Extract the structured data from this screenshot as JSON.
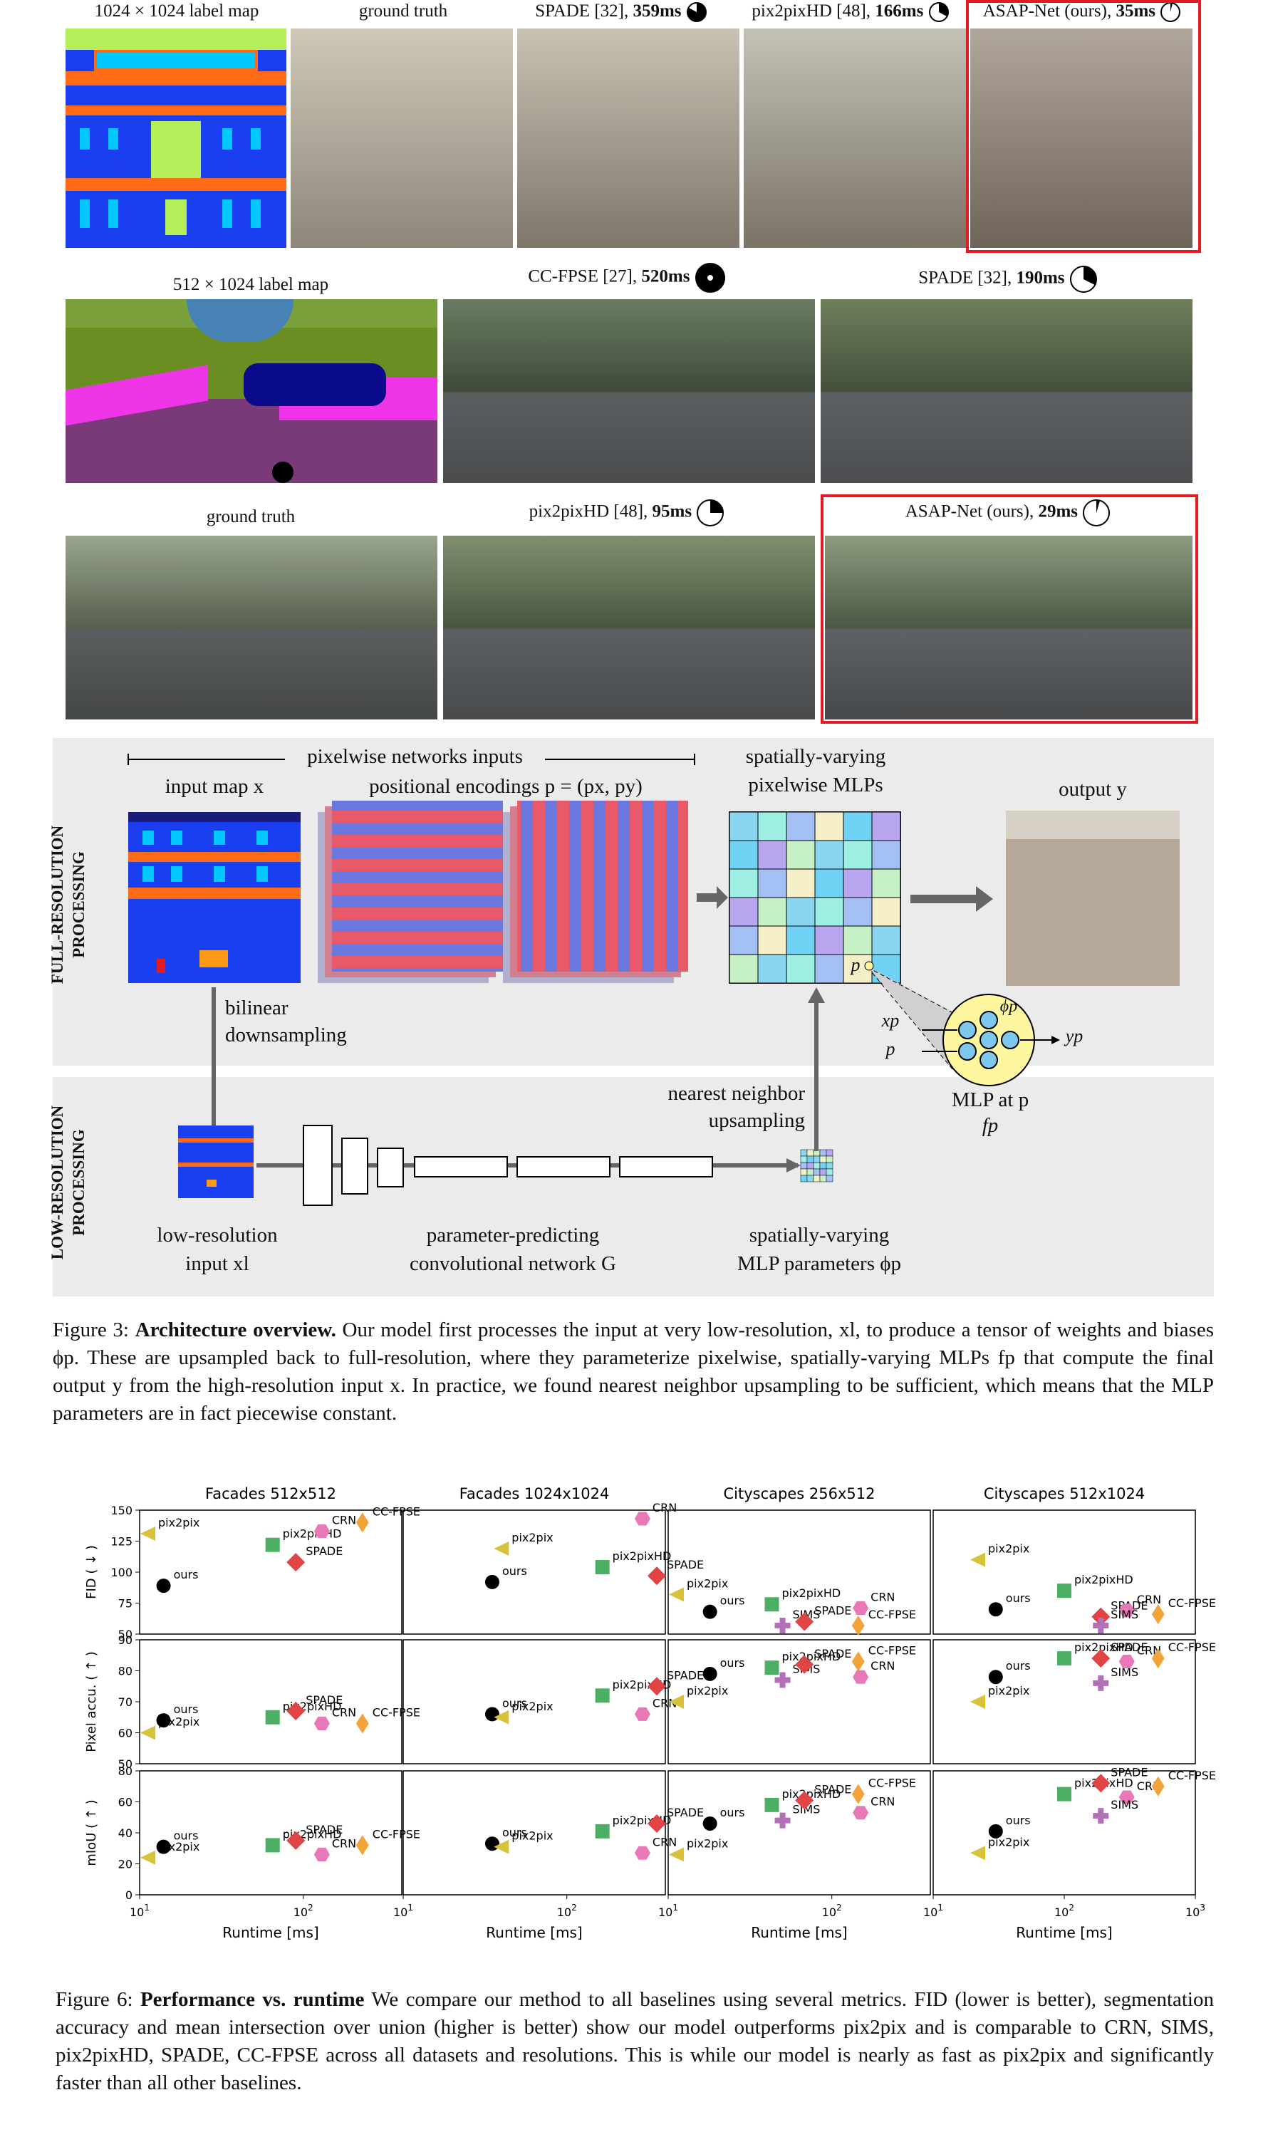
{
  "row1": {
    "labels": [
      "1024 × 1024 label map",
      "ground truth",
      "SPADE [32], ",
      "pix2pixHD [48], ",
      "ASAP-Net (ours), "
    ],
    "times": [
      "",
      "",
      "359ms",
      "166ms",
      "35ms"
    ]
  },
  "row2": {
    "labels": [
      "512 × 1024 label map",
      "CC-FPSE [27], ",
      "SPADE [32], "
    ],
    "times": [
      "",
      "520ms",
      "190ms"
    ]
  },
  "row3": {
    "labels": [
      "ground truth",
      "pix2pixHD [48], ",
      "ASAP-Net (ours), "
    ],
    "times": [
      "",
      "95ms",
      "29ms"
    ]
  },
  "arch": {
    "inputs_header": "pixelwise networks inputs",
    "input_map": "input map x",
    "positional": "positional encodings p = (px, py)",
    "mlps_top": "spatially-varying",
    "mlps_bottom": "pixelwise MLPs",
    "output": "output y",
    "full_res": "FULL-RESOLUTION",
    "processing": "PROCESSING",
    "low_res": "LOW-RESOLUTION",
    "bilinear": "bilinear",
    "downsampling": "downsampling",
    "nearest": "nearest neighbor",
    "upsampling": "upsampling",
    "mlp_at": "MLP at p",
    "fp": "fp",
    "xp": "xp",
    "p": "p",
    "phi": "ϕp",
    "yp": "yp",
    "lowres_input_1": "low-resolution",
    "lowres_input_2": "input xl",
    "cnn_1": "parameter-predicting",
    "cnn_2": "convolutional network G",
    "params_1": "spatially-varying",
    "params_2": "MLP parameters ϕp",
    "p_label": "p"
  },
  "fig3": {
    "prefix": "Figure 3: ",
    "title": "Architecture overview.",
    "body": " Our model first processes the input at very low-resolution, xl, to produce a tensor of weights and biases ϕp. These are upsampled back to full-resolution, where they parameterize pixelwise, spatially-varying MLPs fp that compute the final output y from the high-resolution input x. In practice, we found nearest neighbor upsampling to be sufficient, which means that the MLP parameters are in fact piecewise constant."
  },
  "fig6": {
    "prefix": "Figure 6: ",
    "title": "Performance vs. runtime",
    "body": " We compare our method to all baselines using several metrics. FID (lower is better), segmentation accuracy and mean intersection over union (higher is better) show our model outperforms pix2pix and is comparable to CRN, SIMS, pix2pixHD, SPADE, CC-FPSE across all datasets and resolutions. This is while our model is nearly as fast as pix2pix and significantly faster than all other baselines."
  },
  "colors": {
    "ours": "#000000",
    "pix2pix": "#d8c23a",
    "pix2pixHD": "#4daf63",
    "SPADE": "#e04444",
    "CRN": "#e978b8",
    "CC-FPSE": "#f2a43a",
    "SIMS": "#b270b8"
  },
  "chart_data": [
    {
      "type": "scatter",
      "title": "Facades 512x512",
      "ylabel": "FID ( ↓ )",
      "ylim": [
        50,
        150
      ],
      "xscale": "log",
      "xlim": [
        10,
        400
      ],
      "points": [
        {
          "name": "pix2pix",
          "x": 11,
          "y": 131
        },
        {
          "name": "ours",
          "x": 14,
          "y": 89
        },
        {
          "name": "pix2pixHD",
          "x": 65,
          "y": 122
        },
        {
          "name": "SPADE",
          "x": 90,
          "y": 108
        },
        {
          "name": "CRN",
          "x": 130,
          "y": 133
        },
        {
          "name": "CC-FPSE",
          "x": 230,
          "y": 140
        }
      ]
    },
    {
      "type": "scatter",
      "title": "Facades 1024x1024",
      "ylim": [
        50,
        150
      ],
      "xscale": "log",
      "xlim": [
        25,
        700
      ],
      "points": [
        {
          "name": "pix2pix",
          "x": 40,
          "y": 119
        },
        {
          "name": "ours",
          "x": 35,
          "y": 92
        },
        {
          "name": "pix2pixHD",
          "x": 165,
          "y": 104
        },
        {
          "name": "SPADE",
          "x": 360,
          "y": 97
        },
        {
          "name": "CRN",
          "x": 290,
          "y": 145
        }
      ]
    },
    {
      "type": "scatter",
      "title": "Cityscapes 256x512",
      "ylim": [
        50,
        150
      ],
      "xscale": "log",
      "xlim": [
        8,
        250
      ],
      "points": [
        {
          "name": "pix2pix",
          "x": 8.5,
          "y": 82
        },
        {
          "name": "ours",
          "x": 18,
          "y": 68
        },
        {
          "name": "pix2pixHD",
          "x": 43,
          "y": 74
        },
        {
          "name": "SIMS",
          "x": 50,
          "y": 51
        },
        {
          "name": "SPADE",
          "x": 68,
          "y": 60
        },
        {
          "name": "CRN",
          "x": 150,
          "y": 71
        },
        {
          "name": "CC-FPSE",
          "x": 145,
          "y": 56
        }
      ]
    },
    {
      "type": "scatter",
      "title": "Cityscapes 512x1024",
      "ylim": [
        50,
        150
      ],
      "xscale": "log",
      "xlim": [
        20,
        1000
      ],
      "points": [
        {
          "name": "pix2pix",
          "x": 22,
          "y": 110
        },
        {
          "name": "ours",
          "x": 30,
          "y": 70
        },
        {
          "name": "pix2pixHD",
          "x": 100,
          "y": 85
        },
        {
          "name": "SPADE",
          "x": 190,
          "y": 64
        },
        {
          "name": "CRN",
          "x": 300,
          "y": 69
        },
        {
          "name": "SIMS",
          "x": 190,
          "y": 53
        },
        {
          "name": "CC-FPSE",
          "x": 520,
          "y": 66
        }
      ]
    },
    {
      "type": "scatter",
      "ylabel": "Pixel accu. ( ↑ )",
      "ylim": [
        50,
        90
      ],
      "xscale": "log",
      "xlim": [
        10,
        400
      ],
      "points": [
        {
          "name": "ours",
          "x": 14,
          "y": 64
        },
        {
          "name": "pix2pix",
          "x": 11,
          "y": 60
        },
        {
          "name": "pix2pixHD",
          "x": 65,
          "y": 65
        },
        {
          "name": "SPADE",
          "x": 90,
          "y": 67
        },
        {
          "name": "CRN",
          "x": 130,
          "y": 63
        },
        {
          "name": "CC-FPSE",
          "x": 230,
          "y": 63
        }
      ]
    },
    {
      "type": "scatter",
      "ylim": [
        50,
        90
      ],
      "xscale": "log",
      "xlim": [
        25,
        700
      ],
      "points": [
        {
          "name": "ours",
          "x": 35,
          "y": 66
        },
        {
          "name": "pix2pix",
          "x": 40,
          "y": 65
        },
        {
          "name": "pix2pixHD",
          "x": 165,
          "y": 72
        },
        {
          "name": "SPADE",
          "x": 360,
          "y": 75
        },
        {
          "name": "CRN",
          "x": 290,
          "y": 66
        }
      ]
    },
    {
      "type": "scatter",
      "ylim": [
        50,
        90
      ],
      "xscale": "log",
      "xlim": [
        8,
        250
      ],
      "points": [
        {
          "name": "ours",
          "x": 18,
          "y": 79
        },
        {
          "name": "pix2pix",
          "x": 8.5,
          "y": 70
        },
        {
          "name": "pix2pixHD",
          "x": 43,
          "y": 81
        },
        {
          "name": "SIMS",
          "x": 50,
          "y": 77
        },
        {
          "name": "SPADE",
          "x": 68,
          "y": 82
        },
        {
          "name": "CC-FPSE",
          "x": 145,
          "y": 83
        },
        {
          "name": "CRN",
          "x": 150,
          "y": 78
        }
      ]
    },
    {
      "type": "scatter",
      "ylim": [
        50,
        90
      ],
      "xscale": "log",
      "xlim": [
        20,
        1000
      ],
      "points": [
        {
          "name": "ours",
          "x": 30,
          "y": 78
        },
        {
          "name": "pix2pix",
          "x": 22,
          "y": 70
        },
        {
          "name": "pix2pixHD",
          "x": 100,
          "y": 84
        },
        {
          "name": "SPADE",
          "x": 190,
          "y": 84
        },
        {
          "name": "SIMS",
          "x": 190,
          "y": 76
        },
        {
          "name": "CRN",
          "x": 300,
          "y": 83
        },
        {
          "name": "CC-FPSE",
          "x": 520,
          "y": 84
        }
      ]
    },
    {
      "type": "scatter",
      "ylabel": "mIoU ( ↑ )",
      "xlabel": "Runtime [ms]",
      "ylim": [
        0,
        80
      ],
      "xscale": "log",
      "xlim": [
        10,
        400
      ],
      "points": [
        {
          "name": "ours",
          "x": 14,
          "y": 31
        },
        {
          "name": "pix2pix",
          "x": 11,
          "y": 24
        },
        {
          "name": "pix2pixHD",
          "x": 65,
          "y": 32
        },
        {
          "name": "SPADE",
          "x": 90,
          "y": 35
        },
        {
          "name": "CRN",
          "x": 130,
          "y": 26
        },
        {
          "name": "CC-FPSE",
          "x": 230,
          "y": 32
        }
      ]
    },
    {
      "type": "scatter",
      "xlabel": "Runtime [ms]",
      "ylim": [
        0,
        80
      ],
      "xscale": "log",
      "xlim": [
        25,
        700
      ],
      "points": [
        {
          "name": "ours",
          "x": 35,
          "y": 33
        },
        {
          "name": "pix2pix",
          "x": 40,
          "y": 31
        },
        {
          "name": "pix2pixHD",
          "x": 165,
          "y": 41
        },
        {
          "name": "SPADE",
          "x": 360,
          "y": 46
        },
        {
          "name": "CRN",
          "x": 290,
          "y": 27
        }
      ]
    },
    {
      "type": "scatter",
      "xlabel": "Runtime [ms]",
      "ylim": [
        0,
        80
      ],
      "xscale": "log",
      "xlim": [
        8,
        250
      ],
      "points": [
        {
          "name": "ours",
          "x": 18,
          "y": 46
        },
        {
          "name": "pix2pix",
          "x": 8.5,
          "y": 26
        },
        {
          "name": "pix2pixHD",
          "x": 43,
          "y": 58
        },
        {
          "name": "SIMS",
          "x": 50,
          "y": 48
        },
        {
          "name": "SPADE",
          "x": 68,
          "y": 61
        },
        {
          "name": "CC-FPSE",
          "x": 145,
          "y": 65
        },
        {
          "name": "CRN",
          "x": 150,
          "y": 53
        }
      ]
    },
    {
      "type": "scatter",
      "xlabel": "Runtime [ms]",
      "ylim": [
        0,
        80
      ],
      "xscale": "log",
      "xlim": [
        20,
        1000
      ],
      "points": [
        {
          "name": "ours",
          "x": 30,
          "y": 41
        },
        {
          "name": "pix2pix",
          "x": 22,
          "y": 27
        },
        {
          "name": "pix2pixHD",
          "x": 100,
          "y": 65
        },
        {
          "name": "SPADE",
          "x": 190,
          "y": 72
        },
        {
          "name": "CRN",
          "x": 300,
          "y": 63
        },
        {
          "name": "SIMS",
          "x": 190,
          "y": 51
        },
        {
          "name": "CC-FPSE",
          "x": 520,
          "y": 70
        }
      ]
    }
  ]
}
